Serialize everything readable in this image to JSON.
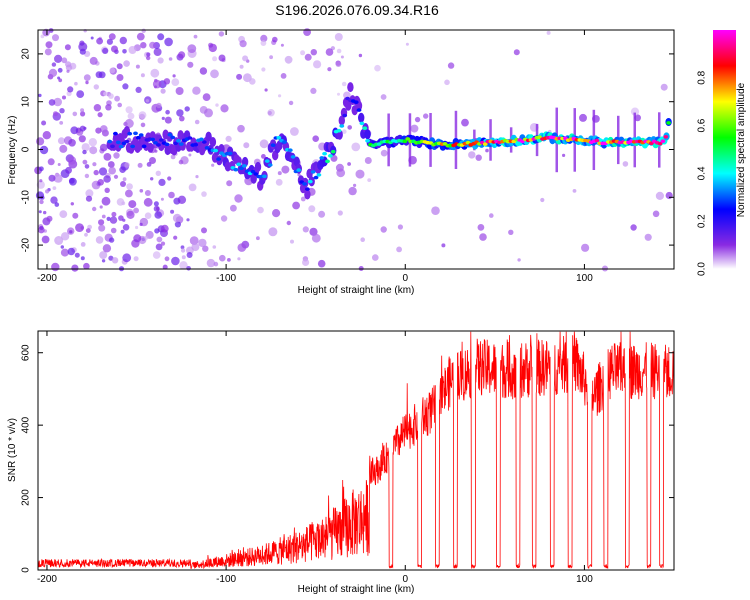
{
  "title": "S196.2026.076.09.34.R16",
  "chart_data": [
    {
      "type": "heatmap",
      "name": "spectrogram",
      "xlabel": "Height of straight line (km)",
      "ylabel": "Frequency (Hz)",
      "xlim": [
        -205,
        150
      ],
      "ylim": [
        -25,
        25
      ],
      "xticks": [
        -200,
        -100,
        0,
        100
      ],
      "yticks": [
        -20,
        -10,
        0,
        10,
        20
      ],
      "colorbar": {
        "label": "Normalized spectral amplitude",
        "range": [
          0,
          1
        ],
        "ticks": [
          0.0,
          0.2,
          0.4,
          0.6,
          0.8
        ],
        "tick_labels": [
          "0.0",
          "0.2",
          "0.4",
          "0.6",
          "0.8"
        ],
        "colormap": [
          "#ffffff",
          "#8a2be2",
          "#0000ff",
          "#00ffff",
          "#00ff00",
          "#ffff00",
          "#ff0000",
          "#ff00ff"
        ]
      },
      "ridge": [
        {
          "x": -140,
          "freq": 2,
          "amp": 0.25
        },
        {
          "x": -110,
          "freq": 1,
          "amp": 0.3
        },
        {
          "x": -95,
          "freq": -3,
          "amp": 0.35
        },
        {
          "x": -80,
          "freq": -6,
          "amp": 0.3
        },
        {
          "x": -70,
          "freq": 3,
          "amp": 0.35
        },
        {
          "x": -55,
          "freq": -8,
          "amp": 0.3
        },
        {
          "x": -40,
          "freq": 1,
          "amp": 0.4
        },
        {
          "x": -30,
          "freq": 12,
          "amp": 0.2
        },
        {
          "x": -20,
          "freq": 1,
          "amp": 0.45
        },
        {
          "x": 0,
          "freq": 2,
          "amp": 0.55
        },
        {
          "x": 20,
          "freq": 1,
          "amp": 0.65
        },
        {
          "x": 50,
          "freq": 1.5,
          "amp": 0.8
        },
        {
          "x": 80,
          "freq": 2.5,
          "amp": 0.85
        },
        {
          "x": 110,
          "freq": 1.5,
          "amp": 0.9
        },
        {
          "x": 145,
          "freq": 1.5,
          "amp": 0.85
        },
        {
          "x": 148,
          "freq": 8,
          "amp": 0.5
        }
      ]
    },
    {
      "type": "line",
      "name": "snr",
      "xlabel": "Height of straight line (km)",
      "ylabel": "SNR (10 * v/v)",
      "xlim": [
        -205,
        150
      ],
      "ylim": [
        0,
        660
      ],
      "xticks": [
        -200,
        -100,
        0,
        100
      ],
      "yticks": [
        0,
        200,
        400,
        600
      ],
      "color": "#ff0000",
      "envelope": [
        {
          "x": -205,
          "y": 15
        },
        {
          "x": -120,
          "y": 20
        },
        {
          "x": -100,
          "y": 45
        },
        {
          "x": -80,
          "y": 70
        },
        {
          "x": -60,
          "y": 110
        },
        {
          "x": -45,
          "y": 150
        },
        {
          "x": -30,
          "y": 220
        },
        {
          "x": -15,
          "y": 280
        },
        {
          "x": 0,
          "y": 380
        },
        {
          "x": 15,
          "y": 440
        },
        {
          "x": 25,
          "y": 520
        },
        {
          "x": 40,
          "y": 560
        },
        {
          "x": 60,
          "y": 550
        },
        {
          "x": 80,
          "y": 560
        },
        {
          "x": 95,
          "y": 570
        },
        {
          "x": 105,
          "y": 480
        },
        {
          "x": 115,
          "y": 550
        },
        {
          "x": 150,
          "y": 550
        }
      ],
      "dropouts": [
        -8,
        8,
        18,
        28,
        38,
        52,
        63,
        72,
        82,
        92,
        103,
        112,
        124,
        136,
        143
      ]
    }
  ]
}
